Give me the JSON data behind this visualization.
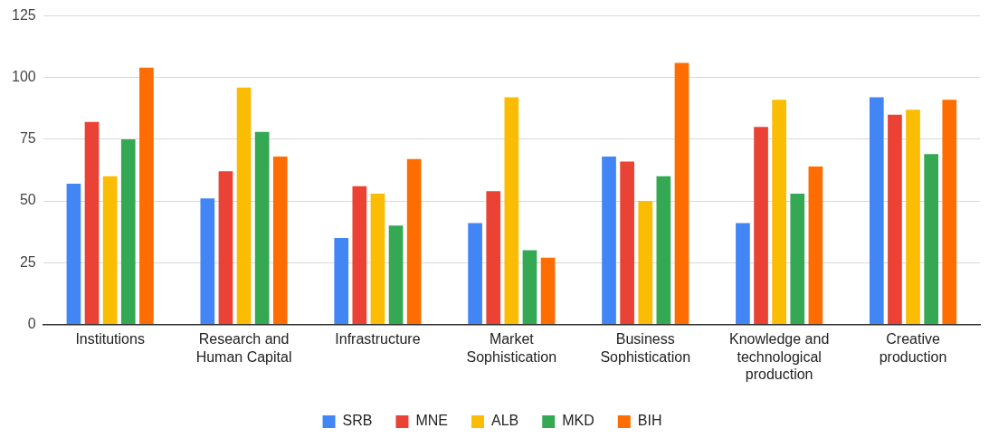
{
  "chart_data": {
    "type": "bar",
    "categories": [
      "Institutions",
      "Research and Human Capital",
      "Infrastructure",
      "Market Sophistication",
      "Business Sophistication",
      "Knowledge and technological production",
      "Creative production"
    ],
    "series": [
      {
        "name": "SRB",
        "color": "#4285f4",
        "values": [
          57,
          51,
          35,
          41,
          68,
          41,
          92
        ]
      },
      {
        "name": "MNE",
        "color": "#ea4335",
        "values": [
          82,
          62,
          56,
          54,
          66,
          80,
          85
        ]
      },
      {
        "name": "ALB",
        "color": "#fbbc04",
        "values": [
          60,
          96,
          53,
          92,
          50,
          91,
          87
        ]
      },
      {
        "name": "MKD",
        "color": "#34a853",
        "values": [
          75,
          78,
          40,
          30,
          60,
          53,
          69
        ]
      },
      {
        "name": "BIH",
        "color": "#ff6d01",
        "values": [
          104,
          68,
          67,
          27,
          106,
          64,
          91
        ]
      }
    ],
    "ylim": [
      0,
      125
    ],
    "yticks": [
      0,
      25,
      50,
      75,
      100,
      125
    ],
    "grid": "y",
    "legend": "bottom"
  }
}
